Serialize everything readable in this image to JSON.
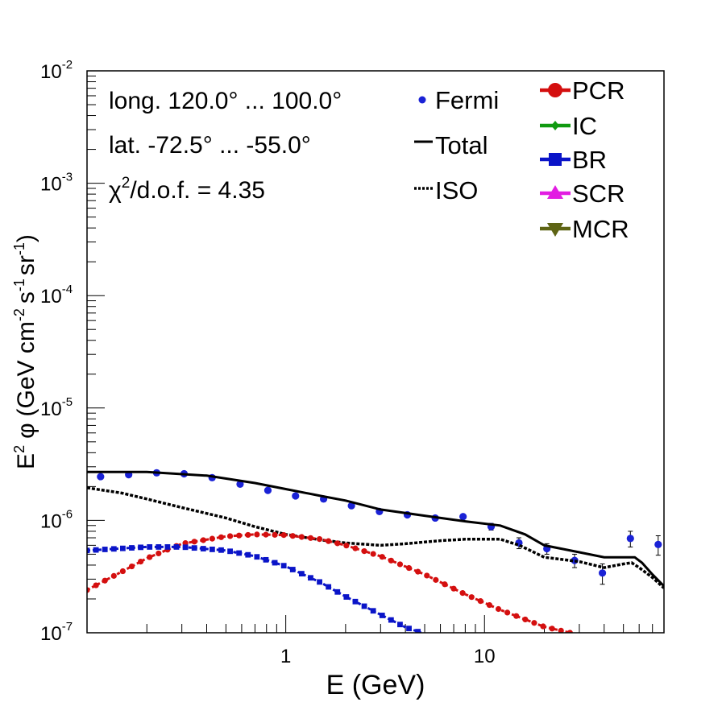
{
  "chart_data": {
    "type": "scatter",
    "x_scale": "log",
    "y_scale": "log",
    "xlim": [
      0.1,
      80
    ],
    "ylim": [
      1e-07,
      0.01
    ],
    "xlabel": "E (GeV)",
    "ylabel": {
      "prefix": "E",
      "prefix_sup": "2",
      "symbol": "φ",
      "unit_open": "(GeV cm",
      "unit_cm_sup": "-2",
      "unit_s": "s",
      "unit_s_sup": "-1",
      "unit_sr": "sr",
      "unit_sr_sup": "-1",
      "unit_close": ")"
    },
    "x_ticks": [
      {
        "label": "1",
        "value": 1
      },
      {
        "label": "10",
        "value": 10
      }
    ],
    "y_ticks": [
      {
        "base": "10",
        "exp": "-7",
        "value": 1e-07
      },
      {
        "base": "10",
        "exp": "-6",
        "value": 1e-06
      },
      {
        "base": "10",
        "exp": "-5",
        "value": 1e-05
      },
      {
        "base": "10",
        "exp": "-4",
        "value": 0.0001
      },
      {
        "base": "10",
        "exp": "-3",
        "value": 0.001
      },
      {
        "base": "10",
        "exp": "-2",
        "value": 0.01
      }
    ],
    "annotations": {
      "longitude": "long. 120.0° ... 100.0°",
      "latitude": "lat. -72.5° ... -55.0°",
      "chi_symbol": "χ",
      "chi_sup": "2",
      "chi_rest": "/d.o.f. = 4.35"
    },
    "legend": {
      "left": [
        {
          "label": "Fermi",
          "kind": "point",
          "color": "#1a22d6"
        },
        {
          "label": "Total",
          "kind": "solid",
          "color": "#000000"
        },
        {
          "label": "ISO",
          "kind": "dotted",
          "color": "#000000"
        }
      ],
      "right": [
        {
          "label": "PCR",
          "kind": "circle",
          "color": "#d40f0f"
        },
        {
          "label": "IC",
          "kind": "diamond",
          "color": "#109a10"
        },
        {
          "label": "BR",
          "kind": "square",
          "color": "#0a14c8"
        },
        {
          "label": "SCR",
          "kind": "triangle-up",
          "color": "#e21ce2"
        },
        {
          "label": "MCR",
          "kind": "triangle-down",
          "color": "#5e6414"
        }
      ]
    },
    "series": [
      {
        "name": "Fermi",
        "kind": "points",
        "color": "#1a22d6",
        "x": [
          0.117,
          0.162,
          0.224,
          0.308,
          0.426,
          0.589,
          0.813,
          1.12,
          1.55,
          2.14,
          2.96,
          4.09,
          5.65,
          7.8,
          10.8,
          14.9,
          20.6,
          28.4,
          39.2,
          54.2,
          74.8
        ],
        "y": [
          2.45e-06,
          2.55e-06,
          2.65e-06,
          2.6e-06,
          2.4e-06,
          2.1e-06,
          1.85e-06,
          1.65e-06,
          1.55e-06,
          1.35e-06,
          1.2e-06,
          1.12e-06,
          1.05e-06,
          1.08e-06,
          8.8e-07,
          6.3e-07,
          5.6e-07,
          4.4e-07,
          3.4e-07,
          6.9e-07,
          6.1e-07
        ],
        "err_lo": [
          0,
          0,
          0,
          0,
          0,
          0,
          0,
          0,
          0,
          0,
          0,
          0,
          0,
          0,
          6e-08,
          7e-08,
          6e-08,
          6e-08,
          7e-08,
          1.1e-07,
          1.2e-07
        ],
        "err_hi": [
          0,
          0,
          0,
          0,
          0,
          0,
          0,
          0,
          0,
          0,
          0,
          0,
          0,
          0,
          6e-08,
          7e-08,
          6e-08,
          6e-08,
          7e-08,
          1.1e-07,
          1.2e-07
        ]
      },
      {
        "name": "Total",
        "kind": "solid",
        "color": "#000000",
        "x": [
          0.1,
          0.2,
          0.4,
          0.7,
          1.0,
          1.5,
          2.0,
          3.0,
          5.0,
          8.0,
          12.0,
          16.0,
          20.0,
          30.0,
          40.0,
          50.0,
          57.0,
          62.0,
          70.0,
          80.0
        ],
        "y": [
          2.7e-06,
          2.7e-06,
          2.5e-06,
          2.15e-06,
          1.9e-06,
          1.65e-06,
          1.5e-06,
          1.25e-06,
          1.1e-06,
          9.8e-07,
          9e-07,
          7.5e-07,
          6e-07,
          5.2e-07,
          4.7e-07,
          4.7e-07,
          4.7e-07,
          4.2e-07,
          3.3e-07,
          2.6e-07
        ]
      },
      {
        "name": "ISO",
        "kind": "dotted",
        "color": "#000000",
        "x": [
          0.1,
          0.15,
          0.2,
          0.3,
          0.5,
          0.7,
          1.0,
          1.5,
          2.0,
          3.0,
          4.0,
          6.0,
          8.0,
          12.0,
          15.0,
          20.0,
          30.0,
          40.0,
          50.0,
          55.0,
          60.0,
          70.0,
          80.0
        ],
        "y": [
          1.95e-06,
          1.75e-06,
          1.55e-06,
          1.3e-06,
          1.05e-06,
          8.8e-07,
          7.5e-07,
          6.7e-07,
          6.3e-07,
          6e-07,
          6.2e-07,
          6.6e-07,
          6.8e-07,
          6.8e-07,
          6e-07,
          4.7e-07,
          4.3e-07,
          3.8e-07,
          4.1e-07,
          4.2e-07,
          3.8e-07,
          3.1e-07,
          2.5e-07
        ]
      },
      {
        "name": "PCR",
        "kind": "dotted-markers",
        "color": "#d40f0f",
        "marker": "circle",
        "x": [
          0.1,
          0.15,
          0.2,
          0.3,
          0.5,
          0.7,
          1.0,
          1.5,
          2.0,
          3.0,
          5.0,
          8.0,
          12.0,
          20.0,
          27.0
        ],
        "y": [
          2.4e-07,
          3.5e-07,
          4.6e-07,
          6.2e-07,
          7.2e-07,
          7.5e-07,
          7.4e-07,
          6.8e-07,
          6e-07,
          4.8e-07,
          3.3e-07,
          2.2e-07,
          1.6e-07,
          1.13e-07,
          1e-07
        ]
      },
      {
        "name": "BR",
        "kind": "dotted-markers",
        "color": "#0a14c8",
        "marker": "square",
        "x": [
          0.1,
          0.2,
          0.3,
          0.5,
          0.7,
          1.0,
          1.5,
          2.0,
          3.0,
          4.0,
          4.8
        ],
        "y": [
          5.4e-07,
          5.8e-07,
          5.8e-07,
          5.4e-07,
          4.8e-07,
          3.9e-07,
          2.8e-07,
          2.1e-07,
          1.45e-07,
          1.12e-07,
          1e-07
        ]
      }
    ]
  }
}
